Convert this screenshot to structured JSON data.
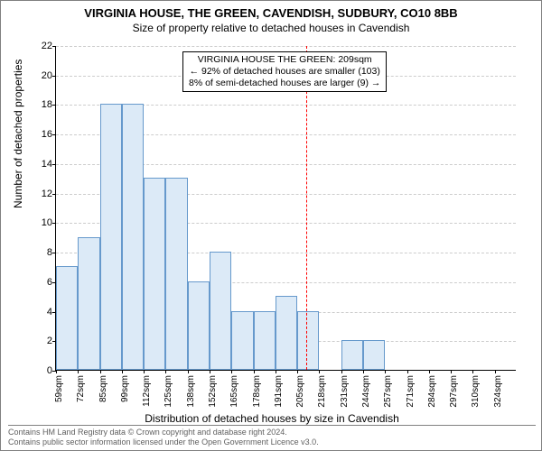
{
  "title": "VIRGINIA HOUSE, THE GREEN, CAVENDISH, SUDBURY, CO10 8BB",
  "subtitle": "Size of property relative to detached houses in Cavendish",
  "ylabel": "Number of detached properties",
  "xlabel": "Distribution of detached houses by size in Cavendish",
  "chart": {
    "type": "histogram",
    "ylim": [
      0,
      22
    ],
    "ytick_step": 2,
    "categories": [
      "59sqm",
      "72sqm",
      "85sqm",
      "99sqm",
      "112sqm",
      "125sqm",
      "138sqm",
      "152sqm",
      "165sqm",
      "178sqm",
      "191sqm",
      "205sqm",
      "218sqm",
      "231sqm",
      "244sqm",
      "257sqm",
      "271sqm",
      "284sqm",
      "297sqm",
      "310sqm",
      "324sqm"
    ],
    "values": [
      7,
      9,
      18,
      18,
      13,
      13,
      6,
      8,
      4,
      4,
      5,
      4,
      0,
      2,
      2,
      0,
      0,
      0,
      0,
      0,
      0
    ],
    "bar_fill": "#dceaf7",
    "bar_border": "#6699cc",
    "grid_color": "#cccccc",
    "background_color": "#ffffff",
    "ref_line_index": 11.4,
    "ref_line_color": "#ff0000"
  },
  "annotation": {
    "line1": "VIRGINIA HOUSE THE GREEN: 209sqm",
    "line2": "← 92% of detached houses are smaller (103)",
    "line3": "8% of semi-detached houses are larger (9) →"
  },
  "footer": {
    "line1": "Contains HM Land Registry data © Crown copyright and database right 2024.",
    "line2": "Contains public sector information licensed under the Open Government Licence v3.0."
  }
}
